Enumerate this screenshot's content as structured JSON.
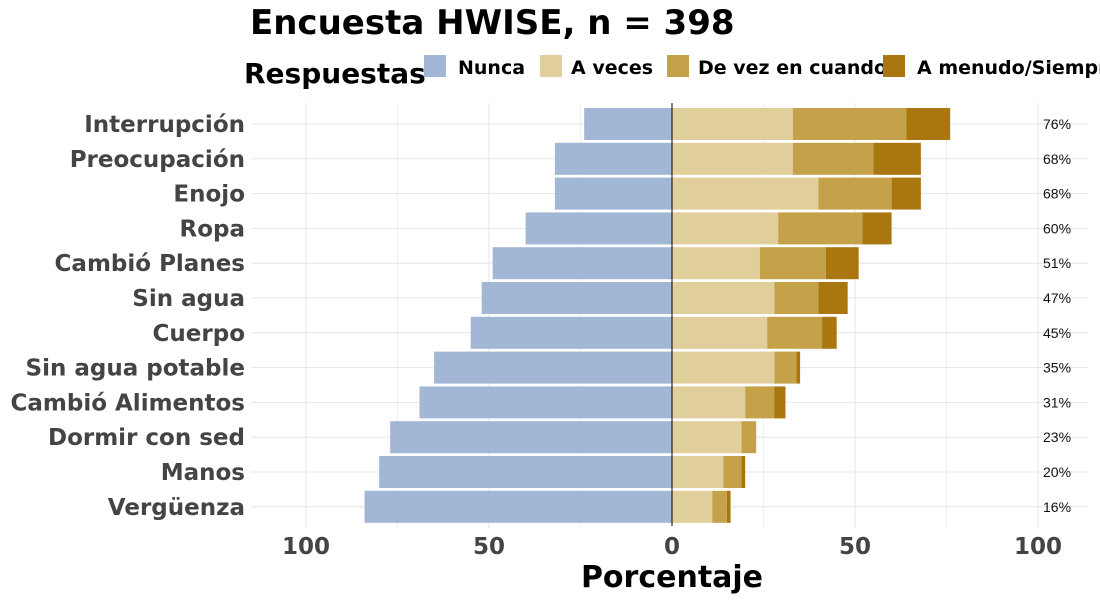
{
  "chart_data": {
    "type": "bar",
    "orientation": "horizontal-diverging",
    "title": "Encuesta HWISE, n = 398",
    "legend_title": "Respuestas",
    "legend_position": "top",
    "xlabel": "Porcentaje",
    "ylabel": "",
    "xlim": [
      -100,
      100
    ],
    "xticks": [
      -100,
      -50,
      0,
      50,
      100
    ],
    "xtick_labels": [
      "100",
      "50",
      "0",
      "50",
      "100"
    ],
    "grid": true,
    "categories": [
      "Interrupción",
      "Preocupación",
      "Enojo",
      "Ropa",
      "Cambió Planes",
      "Sin agua",
      "Cuerpo",
      "Sin agua potable",
      "Cambió Alimentos",
      "Dormir con sed",
      "Manos",
      "Vergüenza"
    ],
    "series": [
      {
        "name": "Nunca",
        "color": "#a2b6d6",
        "direction": "negative",
        "values": [
          24,
          32,
          32,
          40,
          49,
          52,
          55,
          65,
          69,
          77,
          80,
          84
        ]
      },
      {
        "name": "A veces",
        "color": "#e1cf9b",
        "direction": "positive",
        "values": [
          33,
          33,
          40,
          29,
          24,
          28,
          26,
          28,
          20,
          19,
          14,
          11
        ]
      },
      {
        "name": "De vez en cuando",
        "color": "#c5a14a",
        "direction": "positive",
        "values": [
          31,
          22,
          20,
          23,
          18,
          12,
          15,
          6,
          8,
          4,
          5,
          4
        ]
      },
      {
        "name": "A menudo/Siempre",
        "color": "#a9760f",
        "direction": "positive",
        "values": [
          12,
          13,
          8,
          8,
          9,
          8,
          4,
          1,
          3,
          0,
          1,
          1
        ]
      }
    ],
    "percent_labels": [
      "76%",
      "68%",
      "68%",
      "60%",
      "51%",
      "47%",
      "45%",
      "35%",
      "31%",
      "23%",
      "20%",
      "16%"
    ]
  }
}
